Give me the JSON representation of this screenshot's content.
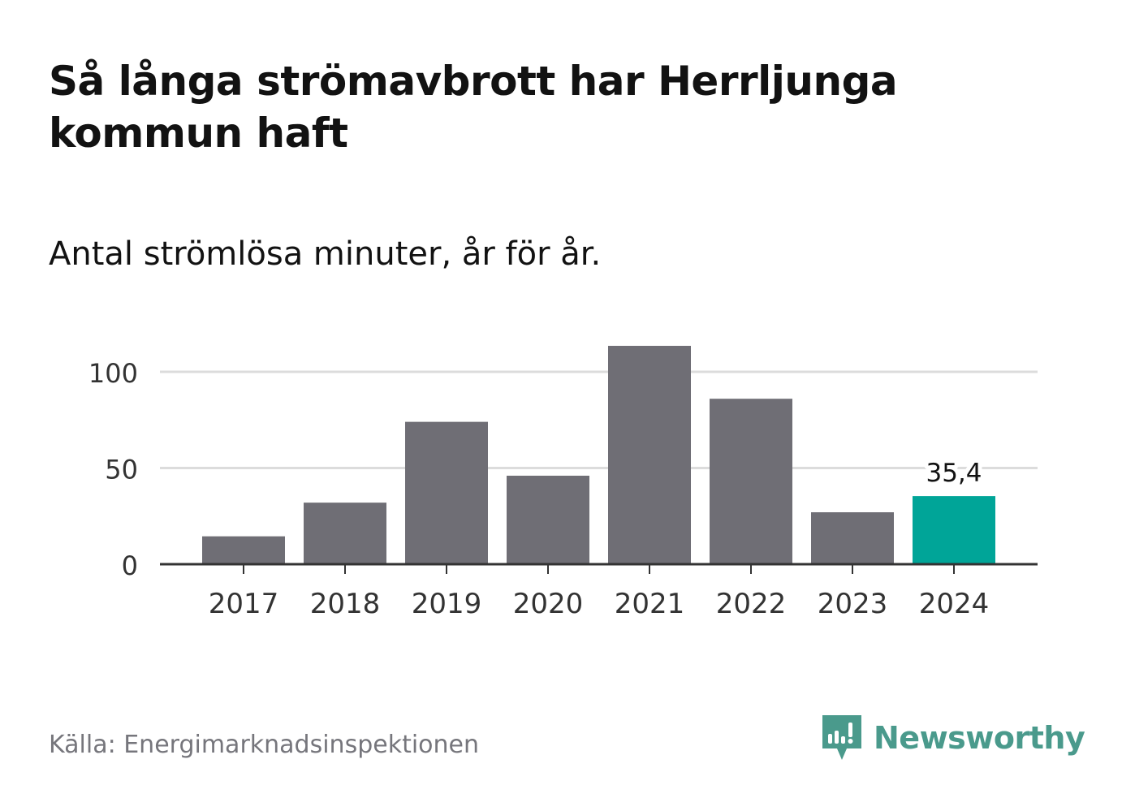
{
  "header": {
    "title": "Så långa strömavbrott har Herrljunga kommun haft",
    "subtitle": "Antal strömlösa minuter, år för år."
  },
  "footer": {
    "source": "Källa: Energimarknadsinspektionen",
    "brand": "Newsworthy"
  },
  "colors": {
    "bar": "#6f6e75",
    "highlight": "#00a598",
    "grid": "#dcdcdc",
    "axis": "#333333",
    "brand": "#4a9a8c"
  },
  "chart_data": {
    "type": "bar",
    "categories": [
      "2017",
      "2018",
      "2019",
      "2020",
      "2021",
      "2022",
      "2023",
      "2024"
    ],
    "values": [
      14.5,
      32,
      74,
      46,
      113.5,
      86,
      27,
      35.4
    ],
    "highlight_index": 7,
    "data_labels": [
      {
        "index": 7,
        "text": "35,4"
      }
    ],
    "y_ticks": [
      0,
      50,
      100
    ],
    "y_tick_labels": [
      "0",
      "50",
      "100"
    ],
    "ylim": [
      0,
      120
    ],
    "grid": true,
    "legend": "none"
  }
}
